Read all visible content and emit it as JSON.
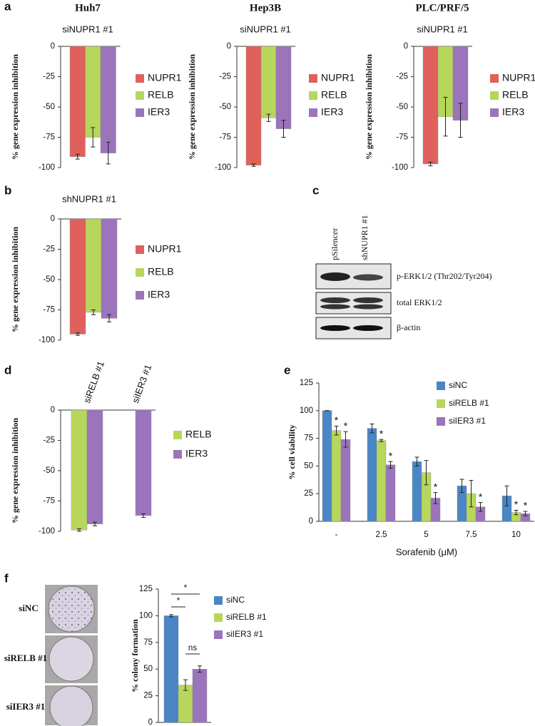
{
  "panel_labels": [
    "a",
    "b",
    "c",
    "d",
    "e",
    "f"
  ],
  "blot": {
    "lanes": [
      "pSilencer",
      "shNUPR1 #1"
    ],
    "bands": [
      "p-ERK1/2 (Thr202/Tyr204)",
      "total ERK1/2",
      "β-actin"
    ]
  },
  "colony": {
    "rows": [
      "siNC",
      "siRELB #1",
      "siIER3 #1"
    ]
  },
  "chart_data": [
    {
      "type": "bar",
      "title": "Huh7",
      "subtitle": "siNUPR1 #1",
      "ylabel": "% gene expression inhibition",
      "categories": [
        null
      ],
      "series": [
        {
          "name": "NUPR1",
          "color": "#e0615c",
          "values": [
            -91
          ],
          "errors": [
            2
          ]
        },
        {
          "name": "RELB",
          "color": "#b7d65c",
          "values": [
            -75
          ],
          "errors": [
            8
          ]
        },
        {
          "name": "IER3",
          "color": "#9b74bb",
          "values": [
            -88
          ],
          "errors": [
            9
          ]
        }
      ],
      "ylim": [
        -100,
        0
      ],
      "yticks": [
        0,
        -25,
        -50,
        -75,
        -100
      ],
      "legend": "right"
    },
    {
      "type": "bar",
      "title": "Hep3B",
      "subtitle": "siNUPR1 #1",
      "ylabel": "% gene expression inhibition",
      "categories": [
        null
      ],
      "series": [
        {
          "name": "NUPR1",
          "color": "#e0615c",
          "values": [
            -98
          ],
          "errors": [
            1
          ]
        },
        {
          "name": "RELB",
          "color": "#b7d65c",
          "values": [
            -59
          ],
          "errors": [
            3
          ]
        },
        {
          "name": "IER3",
          "color": "#9b74bb",
          "values": [
            -68
          ],
          "errors": [
            7
          ]
        }
      ],
      "ylim": [
        -100,
        0
      ],
      "yticks": [
        0,
        -25,
        -50,
        -75,
        -100
      ],
      "legend": "right"
    },
    {
      "type": "bar",
      "title": "PLC/PRF/5",
      "subtitle": "siNUPR1 #1",
      "ylabel": "% gene expression inhibition",
      "categories": [
        null
      ],
      "series": [
        {
          "name": "NUPR1",
          "color": "#e0615c",
          "values": [
            -97
          ],
          "errors": [
            1.5
          ]
        },
        {
          "name": "RELB",
          "color": "#b7d65c",
          "values": [
            -58
          ],
          "errors": [
            16
          ]
        },
        {
          "name": "IER3",
          "color": "#9b74bb",
          "values": [
            -61
          ],
          "errors": [
            14
          ]
        }
      ],
      "ylim": [
        -100,
        0
      ],
      "yticks": [
        0,
        -25,
        -50,
        -75,
        -100
      ],
      "legend": "right"
    },
    {
      "type": "bar",
      "subtitle": "shNUPR1 #1",
      "ylabel": "% gene expression inhibition",
      "categories": [
        null
      ],
      "series": [
        {
          "name": "NUPR1",
          "color": "#e0615c",
          "values": [
            -95
          ],
          "errors": [
            1
          ]
        },
        {
          "name": "RELB",
          "color": "#b7d65c",
          "values": [
            -77
          ],
          "errors": [
            2
          ]
        },
        {
          "name": "IER3",
          "color": "#9b74bb",
          "values": [
            -82
          ],
          "errors": [
            3
          ]
        }
      ],
      "ylim": [
        -100,
        0
      ],
      "yticks": [
        0,
        -25,
        -50,
        -75,
        -100
      ],
      "legend": "right"
    },
    {
      "type": "bar",
      "ylabel": "% gene expression inhibition",
      "categories": [
        "siRELB #1",
        "siIER3 #1"
      ],
      "series": [
        {
          "name": "RELB",
          "color": "#b7d65c",
          "values": [
            -99,
            null
          ],
          "errors": [
            1,
            null
          ]
        },
        {
          "name": "IER3",
          "color": "#9b74bb",
          "values": [
            -94,
            -87
          ],
          "errors": [
            1.5,
            1.5
          ]
        }
      ],
      "ylim": [
        -100,
        0
      ],
      "yticks": [
        0,
        -25,
        -50,
        -75,
        -100
      ],
      "legend": "right"
    },
    {
      "type": "bar",
      "ylabel": "% cell viability",
      "xlabel": "Sorafenib (μM)",
      "categories": [
        "-",
        "2.5",
        "5",
        "7.5",
        "10"
      ],
      "series": [
        {
          "name": "siNC",
          "color": "#4a86c5",
          "values": [
            100,
            84,
            54,
            32,
            23
          ],
          "errors": [
            0,
            4,
            4,
            6,
            9
          ]
        },
        {
          "name": "siRELB #1",
          "color": "#b7d65c",
          "values": [
            82,
            73,
            44,
            25,
            8
          ],
          "errors": [
            4,
            1,
            11,
            12,
            2
          ],
          "significance": [
            "*",
            "*",
            null,
            null,
            "*"
          ]
        },
        {
          "name": "siIER3 #1",
          "color": "#9b74bb",
          "values": [
            74,
            51,
            21,
            13,
            7
          ],
          "errors": [
            7,
            3,
            5,
            4,
            2
          ],
          "significance": [
            "*",
            "*",
            "*",
            "*",
            "*"
          ]
        }
      ],
      "ylim": [
        0,
        125
      ],
      "yticks": [
        0,
        25,
        50,
        75,
        100,
        125
      ],
      "legend": "upper right"
    },
    {
      "type": "bar",
      "ylabel": "% colony formation",
      "categories": [
        null
      ],
      "series": [
        {
          "name": "siNC",
          "color": "#4a86c5",
          "values": [
            100
          ],
          "errors": [
            1
          ]
        },
        {
          "name": "siRELB #1",
          "color": "#b7d65c",
          "values": [
            35
          ],
          "errors": [
            5
          ]
        },
        {
          "name": "siIER3 #1",
          "color": "#9b74bb",
          "values": [
            50
          ],
          "errors": [
            3
          ]
        }
      ],
      "comparisons": [
        {
          "between": [
            0,
            1
          ],
          "label": "*"
        },
        {
          "between": [
            0,
            2
          ],
          "label": "*"
        },
        {
          "between": [
            1,
            2
          ],
          "label": "ns"
        }
      ],
      "ylim": [
        0,
        125
      ],
      "yticks": [
        0,
        25,
        50,
        75,
        100,
        125
      ],
      "legend": "upper right"
    }
  ]
}
